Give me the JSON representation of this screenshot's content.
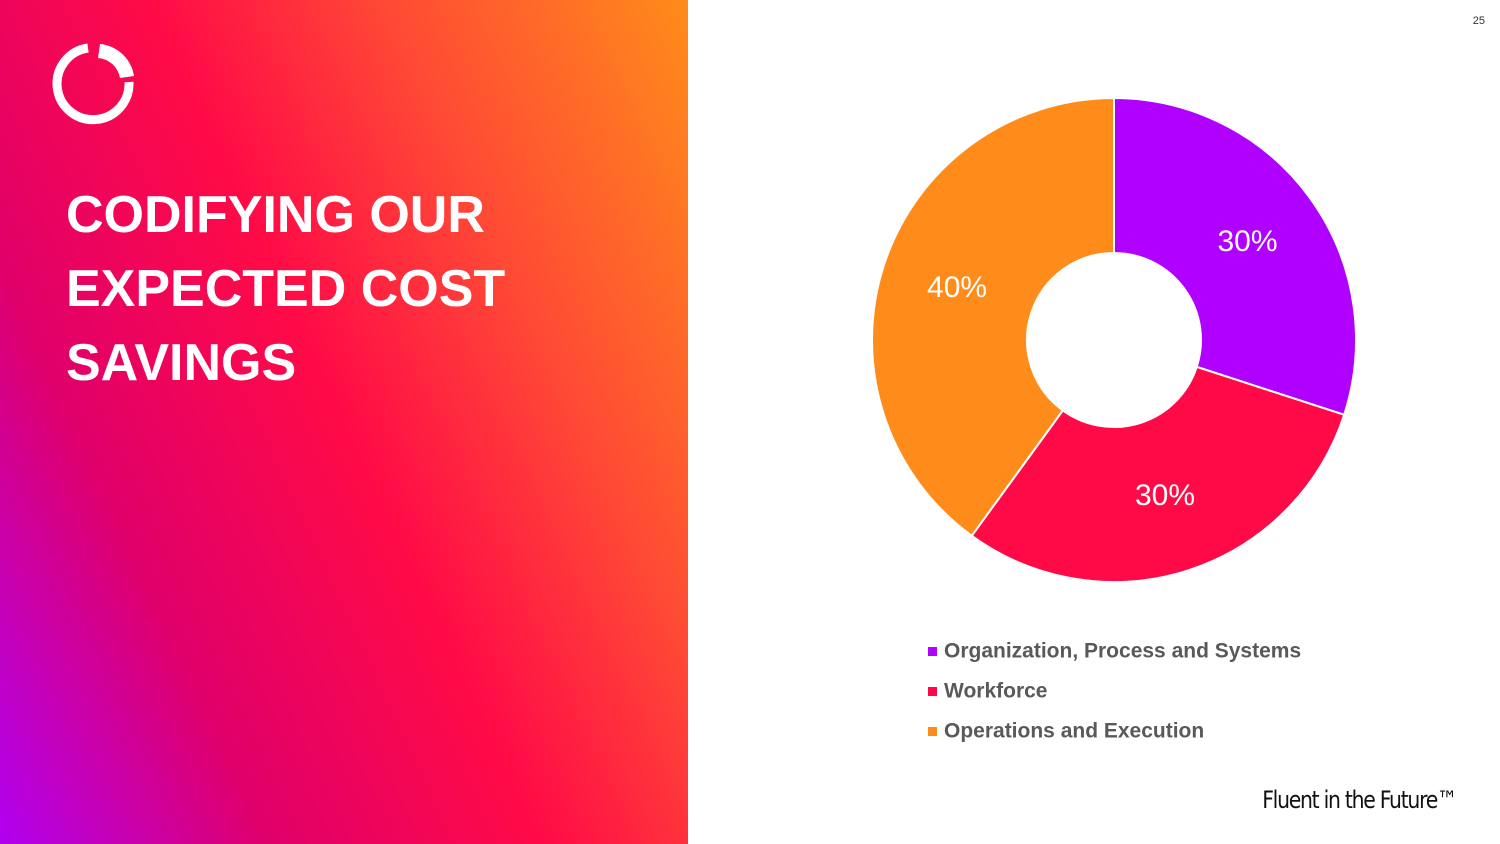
{
  "slide": {
    "title": "CODIFYING OUR EXPECTED COST SAVINGS",
    "page_number": "25",
    "footer": "Fluent in the Future™"
  },
  "chart_data": {
    "type": "pie",
    "donut": true,
    "categories": [
      "Organization, Process and Systems",
      "Workforce",
      "Operations and Execution"
    ],
    "values": [
      30,
      30,
      40
    ],
    "value_labels": [
      "30%",
      "30%",
      "40%"
    ],
    "colors": [
      "#b000ff",
      "#ff0a47",
      "#ff8c1a"
    ]
  }
}
